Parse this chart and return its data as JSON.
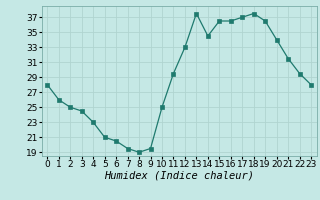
{
  "x": [
    0,
    1,
    2,
    3,
    4,
    5,
    6,
    7,
    8,
    9,
    10,
    11,
    12,
    13,
    14,
    15,
    16,
    17,
    18,
    19,
    20,
    21,
    22,
    23
  ],
  "y": [
    28,
    26,
    25,
    24.5,
    23,
    21,
    20.5,
    19.5,
    19,
    19.5,
    25,
    29.5,
    33,
    37.5,
    34.5,
    36.5,
    36.5,
    37,
    37.5,
    36.5,
    34,
    31.5,
    29.5,
    28
  ],
  "line_color": "#1f7a6e",
  "marker_color": "#1f7a6e",
  "bg_color": "#c5e8e5",
  "grid_color": "#b0d4d0",
  "xlabel": "Humidex (Indice chaleur)",
  "xlim": [
    -0.5,
    23.5
  ],
  "ylim": [
    18.5,
    38.5
  ],
  "yticks": [
    19,
    21,
    23,
    25,
    27,
    29,
    31,
    33,
    35,
    37
  ],
  "xticks": [
    0,
    1,
    2,
    3,
    4,
    5,
    6,
    7,
    8,
    9,
    10,
    11,
    12,
    13,
    14,
    15,
    16,
    17,
    18,
    19,
    20,
    21,
    22,
    23
  ],
  "tick_fontsize": 6.5,
  "label_fontsize": 7.5
}
